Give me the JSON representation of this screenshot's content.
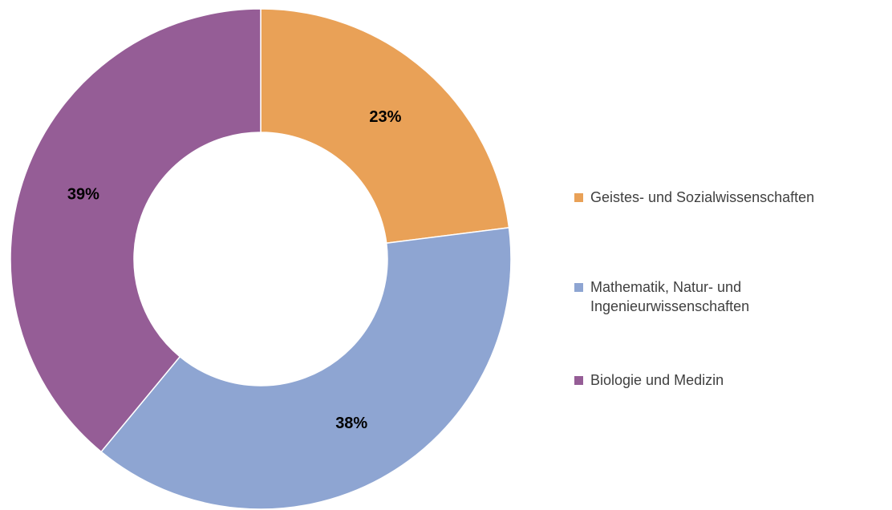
{
  "chart_data": {
    "type": "donut",
    "categories": [
      "Geistes- und Sozialwissenschaften",
      "Mathematik, Natur- und Ingenieurwissenschaften",
      "Biologie und Medizin"
    ],
    "values": [
      23,
      38,
      39
    ],
    "value_labels": [
      "23%",
      "38%",
      "39%"
    ],
    "colors": [
      "#e9a157",
      "#8ea5d2",
      "#955d96"
    ],
    "legend": "right"
  }
}
